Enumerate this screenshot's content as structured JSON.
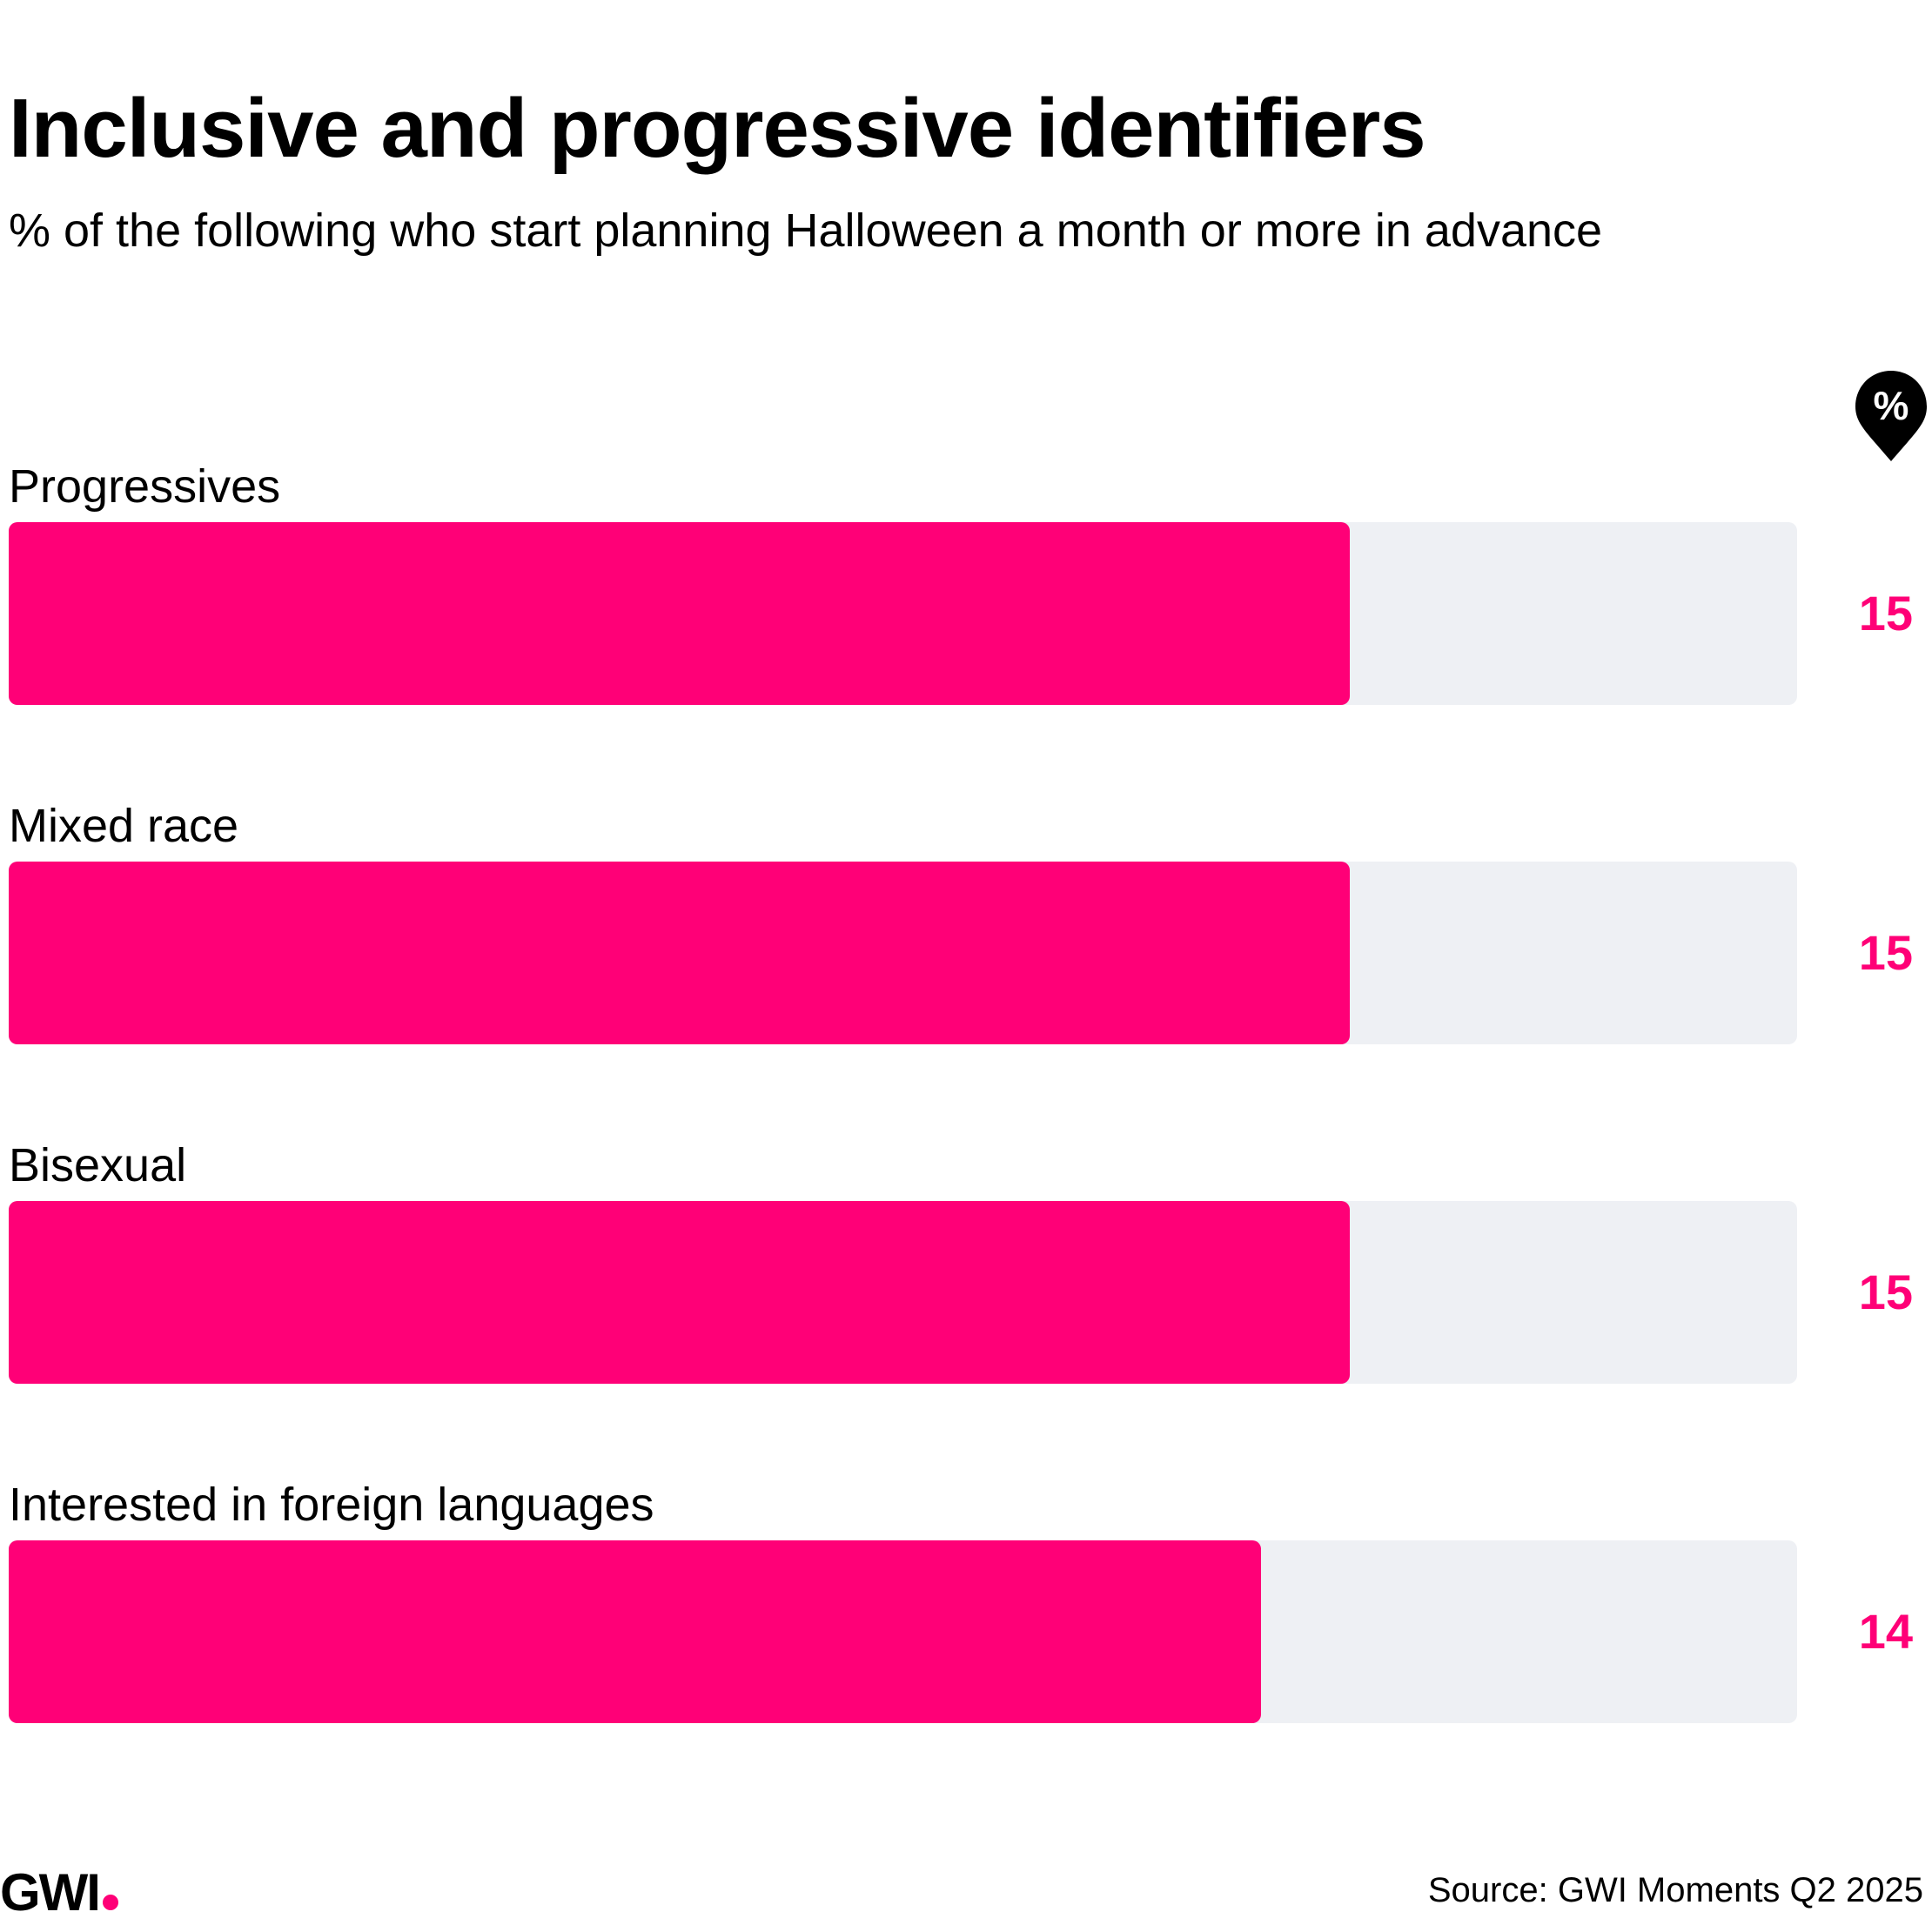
{
  "chart_data": {
    "type": "bar",
    "orientation": "horizontal",
    "title": "Inclusive and progressive identifiers",
    "subtitle": "% of the following who start planning Halloween a month or more in advance",
    "unit_badge": "%",
    "categories": [
      "Progressives",
      "Mixed race",
      "Bisexual",
      "Interested in foreign languages"
    ],
    "values": [
      15,
      15,
      15,
      14
    ],
    "value_labels": [
      "15",
      "15",
      "15",
      "14"
    ],
    "xlim": [
      0,
      20
    ],
    "grid": false,
    "bar_color": "#ff0077",
    "track_color": "#eef0f4",
    "value_color": "#ff0077"
  },
  "footer": {
    "logo": "GWI",
    "source": "Source: GWI Moments Q2 2025"
  },
  "colors": {
    "accent": "#ff0077",
    "text": "#000000",
    "track": "#eef0f4"
  }
}
